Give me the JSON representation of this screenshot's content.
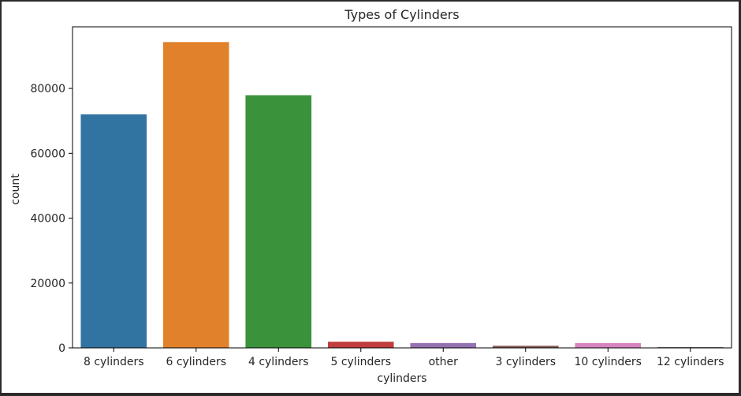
{
  "chart_data": {
    "type": "bar",
    "title": "Types of Cylinders",
    "xlabel": "cylinders",
    "ylabel": "count",
    "categories": [
      "8 cylinders",
      "6 cylinders",
      "4 cylinders",
      "5 cylinders",
      "other",
      "3 cylinders",
      "10 cylinders",
      "12 cylinders"
    ],
    "values": [
      72000,
      94300,
      77900,
      1900,
      1500,
      650,
      1500,
      250
    ],
    "colors": [
      "#3274a1",
      "#e1812c",
      "#3a923a",
      "#c03d3e",
      "#9372b2",
      "#845b53",
      "#d684bd",
      "#7f7f7f"
    ],
    "ylim": [
      0,
      99000
    ],
    "yticks": [
      0,
      20000,
      40000,
      60000,
      80000
    ],
    "grid": false,
    "legend": "none"
  }
}
